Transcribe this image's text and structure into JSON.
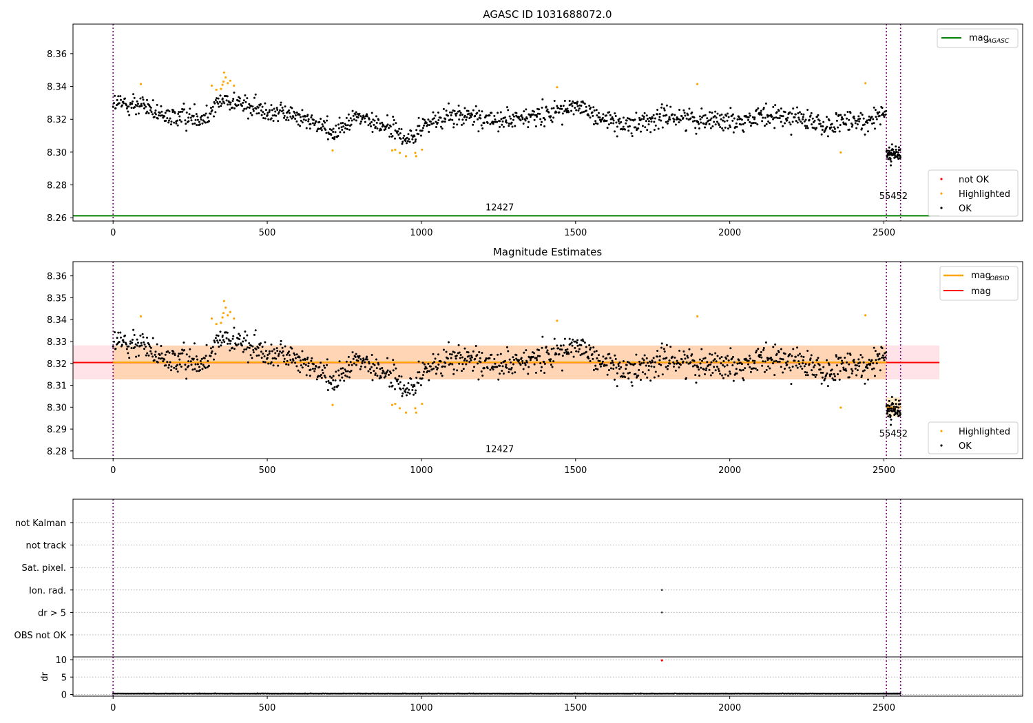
{
  "figure": {
    "title": "AGASC ID 1031688072.0"
  },
  "chart_data": [
    {
      "type": "scatter",
      "title": "AGASC ID 1031688072.0",
      "xlabel": "",
      "ylabel": "",
      "xlim": [
        -130,
        2950
      ],
      "ylim": [
        8.258,
        8.378
      ],
      "x_ticks": [
        0,
        500,
        1000,
        1500,
        2000,
        2500
      ],
      "y_ticks": [
        "8.26",
        "8.28",
        "8.30",
        "8.32",
        "8.34",
        "8.36"
      ],
      "y_tick_values": [
        8.26,
        8.28,
        8.3,
        8.32,
        8.34,
        8.36
      ],
      "grid": false,
      "obs_lines_x": [
        0,
        2508,
        2554
      ],
      "obs_labels": [
        {
          "text": "12427",
          "x": 1254,
          "y": 8.2645
        },
        {
          "text": "55452",
          "x": 2531,
          "y": 8.2715
        }
      ],
      "mag_agasc": 8.2612,
      "mag_agasc_x": [
        -130,
        2680
      ],
      "legend_lines": [
        {
          "name": "mag",
          "sub": "AGASC",
          "color": "#008000"
        }
      ],
      "legend_lines_position": "upper right",
      "legend_points": [
        {
          "name": "not OK",
          "color": "#ff0000"
        },
        {
          "name": "Highlighted",
          "color": "#ffa500"
        },
        {
          "name": "OK",
          "color": "#000000"
        }
      ],
      "legend_points_position": "lower right",
      "series": [
        {
          "name": "OK",
          "color": "#000000",
          "segments": [
            {
              "x": [
                0,
                2508
              ],
              "n": 1250,
              "trend": [
                [
                  0,
                  8.329
                ],
                [
                  100,
                  8.329
                ],
                [
                  160,
                  8.321
                ],
                [
                  300,
                  8.322
                ],
                [
                  360,
                  8.333
                ],
                [
                  450,
                  8.327
                ],
                [
                  600,
                  8.322
                ],
                [
                  720,
                  8.312
                ],
                [
                  780,
                  8.322
                ],
                [
                  900,
                  8.315
                ],
                [
                  960,
                  8.307
                ],
                [
                  1010,
                  8.317
                ],
                [
                  1100,
                  8.322
                ],
                [
                  1300,
                  8.319
                ],
                [
                  1500,
                  8.328
                ],
                [
                  1650,
                  8.316
                ],
                [
                  1800,
                  8.322
                ],
                [
                  2000,
                  8.319
                ],
                [
                  2200,
                  8.322
                ],
                [
                  2300,
                  8.316
                ],
                [
                  2430,
                  8.318
                ],
                [
                  2508,
                  8.326
                ]
              ],
              "spread": 0.0045
            },
            {
              "x": [
                2508,
                2554
              ],
              "n": 60,
              "trend": [
                [
                  2508,
                  8.297
                ],
                [
                  2554,
                  8.299
                ]
              ],
              "spread": 0.004
            }
          ]
        },
        {
          "name": "Highlighted",
          "color": "#ffa500",
          "points": [
            [
              90,
              8.3415
            ],
            [
              320,
              8.3405
            ],
            [
              335,
              8.338
            ],
            [
              350,
              8.3385
            ],
            [
              355,
              8.341
            ],
            [
              358,
              8.343
            ],
            [
              360,
              8.3485
            ],
            [
              365,
              8.3455
            ],
            [
              372,
              8.342
            ],
            [
              380,
              8.3435
            ],
            [
              392,
              8.3405
            ],
            [
              712,
              8.301
            ],
            [
              905,
              8.301
            ],
            [
              915,
              8.3015
            ],
            [
              930,
              8.2995
            ],
            [
              950,
              8.2975
            ],
            [
              980,
              8.2995
            ],
            [
              983,
              8.2975
            ],
            [
              1002,
              8.3015
            ],
            [
              1440,
              8.3395
            ],
            [
              1895,
              8.3415
            ],
            [
              2360,
              8.2998
            ],
            [
              2440,
              8.342
            ]
          ]
        },
        {
          "name": "not OK",
          "color": "#ff0000",
          "points": []
        }
      ]
    },
    {
      "type": "scatter",
      "title": "Magnitude Estimates",
      "xlabel": "",
      "ylabel": "",
      "xlim": [
        -130,
        2950
      ],
      "ylim": [
        8.2765,
        8.3665
      ],
      "x_ticks": [
        0,
        500,
        1000,
        1500,
        2000,
        2500
      ],
      "y_ticks": [
        "8.28",
        "8.29",
        "8.30",
        "8.31",
        "8.32",
        "8.33",
        "8.34",
        "8.35",
        "8.36"
      ],
      "y_tick_values": [
        8.28,
        8.29,
        8.3,
        8.31,
        8.32,
        8.33,
        8.34,
        8.35,
        8.36
      ],
      "grid": false,
      "obs_lines_x": [
        0,
        2508,
        2554
      ],
      "obs_labels": [
        {
          "text": "12427",
          "x": 1254,
          "y": 8.2795
        },
        {
          "text": "55452",
          "x": 2531,
          "y": 8.2865
        }
      ],
      "mag": 8.3204,
      "mag_band": [
        8.3127,
        8.3282
      ],
      "mag_x": [
        -130,
        2680
      ],
      "mag_obsid": [
        {
          "x": [
            0,
            2508
          ],
          "y": 8.3205
        },
        {
          "x": [
            2508,
            2554
          ],
          "y": 8.2999
        }
      ],
      "obsid_bands": [
        {
          "x": [
            0,
            2508
          ],
          "y": [
            8.3127,
            8.3282
          ]
        },
        {
          "x": [
            2508,
            2554
          ],
          "y": [
            8.2955,
            8.3045
          ]
        }
      ],
      "legend_lines": [
        {
          "name": "mag",
          "sub": "OBSID",
          "color": "#ffa500"
        },
        {
          "name": "mag",
          "sub": "",
          "color": "#ff0000"
        }
      ],
      "legend_lines_position": "upper right",
      "legend_points": [
        {
          "name": "Highlighted",
          "color": "#ffa500"
        },
        {
          "name": "OK",
          "color": "#000000"
        }
      ],
      "legend_points_position": "lower right"
    },
    {
      "type": "scatter",
      "title": "",
      "xlabel": "",
      "ylabel": "",
      "xlim": [
        -130,
        2950
      ],
      "flag_categories": [
        "not Kalman",
        "not track",
        "Sat. pixel.",
        "Ion. rad.",
        "dr > 5",
        "OBS not OK"
      ],
      "flag_points": [
        {
          "category": "Ion. rad.",
          "x": 1780
        },
        {
          "category": "dr > 5",
          "x": 1780
        }
      ],
      "grid": "horizontal dotted",
      "obs_lines_x": [
        0,
        2508,
        2554
      ]
    },
    {
      "type": "scatter",
      "title": "",
      "xlabel": "",
      "ylabel": "dr",
      "xlim": [
        -130,
        2950
      ],
      "ylim": [
        -0.5,
        10.8
      ],
      "x_ticks": [
        0,
        500,
        1000,
        1500,
        2000,
        2500
      ],
      "y_ticks": [
        "0",
        "5",
        "10"
      ],
      "y_tick_values": [
        0,
        5,
        10
      ],
      "grid": "horizontal dotted",
      "obs_lines_x": [
        0,
        2508,
        2554
      ],
      "dr_typical": 0.2,
      "dr_outlier": {
        "x": 1780,
        "y": 9.8,
        "color": "#ff0000"
      }
    }
  ]
}
